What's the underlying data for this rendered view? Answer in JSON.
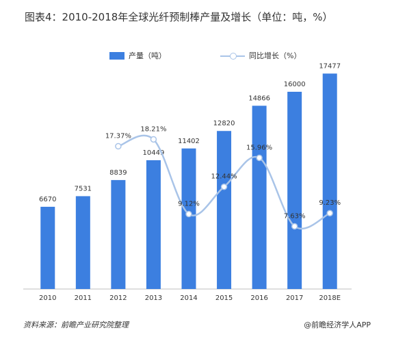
{
  "title": "图表4：2010-2018年全球光纤预制棒产量及增长（单位：吨，%）",
  "source": "资料来源：前瞻产业研究院整理",
  "credit": "@前瞻经济学人APP",
  "colors": {
    "bar": "#3c7fe0",
    "line": "#a9c4e8",
    "text": "#333333"
  },
  "chart_data": {
    "type": "bar+line",
    "categories": [
      "2010",
      "2011",
      "2012",
      "2013",
      "2014",
      "2015",
      "2016",
      "2017",
      "2018E"
    ],
    "series": [
      {
        "name": "产量（吨）",
        "type": "bar",
        "axis": "left",
        "values": [
          6670,
          7531,
          8839,
          10449,
          11402,
          12820,
          14866,
          16000,
          17477
        ],
        "labels": [
          "6670",
          "7531",
          "8839",
          "10449",
          "11402",
          "12820",
          "14866",
          "16000",
          "17477"
        ]
      },
      {
        "name": "同比增长（%）",
        "type": "line",
        "axis": "right",
        "smooth": true,
        "values": [
          null,
          null,
          17.37,
          18.21,
          9.12,
          12.44,
          15.96,
          7.63,
          9.23
        ],
        "labels": [
          null,
          null,
          "17.37%",
          "18.21%",
          "9.12%",
          "12.44%",
          "15.96%",
          "7.63%",
          "9.23%"
        ]
      }
    ],
    "ylim_left": [
      0,
      20000
    ],
    "ylim_right": [
      0,
      30
    ],
    "grid": false,
    "legend": "top"
  }
}
